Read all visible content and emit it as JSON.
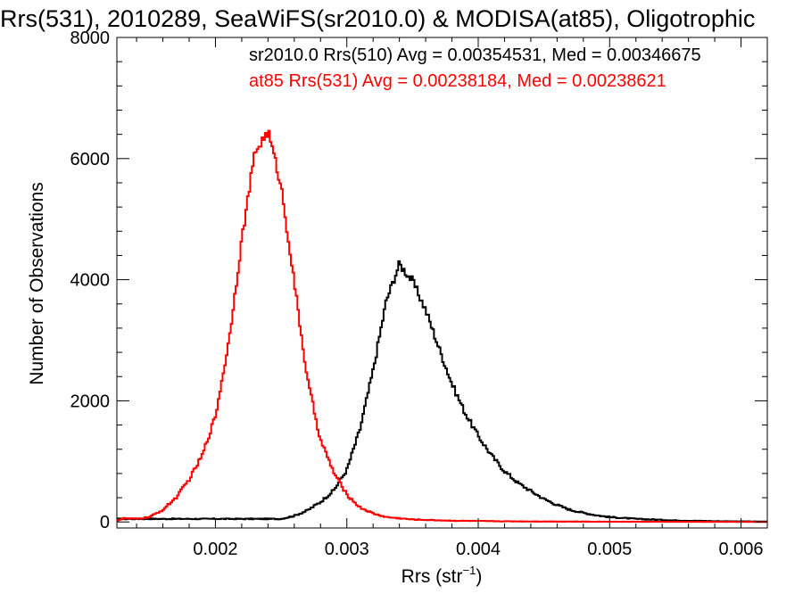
{
  "chart_data": {
    "type": "line",
    "title": "Rrs(531), 2010289, SeaWiFS(sr2010.0) & MODISA(at85), Oligotrophic",
    "xlabel": "Rrs (str",
    "xlabel_sup": "−1",
    "xlabel_close": ")",
    "ylabel": "Number of Observations",
    "xlim": [
      0.00125,
      0.0062
    ],
    "ylim": [
      -100,
      8000
    ],
    "x_ticks": [
      {
        "value": 0.002,
        "label": "0.002"
      },
      {
        "value": 0.003,
        "label": "0.003"
      },
      {
        "value": 0.004,
        "label": "0.004"
      },
      {
        "value": 0.005,
        "label": "0.005"
      },
      {
        "value": 0.006,
        "label": "0.006"
      }
    ],
    "y_ticks": [
      {
        "value": 0,
        "label": "0"
      },
      {
        "value": 2000,
        "label": "2000"
      },
      {
        "value": 4000,
        "label": "4000"
      },
      {
        "value": 6000,
        "label": "6000"
      },
      {
        "value": 8000,
        "label": "8000"
      }
    ],
    "grid": false,
    "legend_position": "top-right",
    "series": [
      {
        "name": "sr2010.0 Rrs(510) Avg = 0.00354531, Med = 0.00346675",
        "color": "#000000",
        "x": [
          0.0025,
          0.0026,
          0.0027,
          0.0028,
          0.0029,
          0.003,
          0.0031,
          0.0032,
          0.0033,
          0.0034,
          0.0035,
          0.0036,
          0.0037,
          0.0038,
          0.0039,
          0.004,
          0.0041,
          0.0042,
          0.0043,
          0.0044,
          0.0045,
          0.0046,
          0.0047,
          0.0048,
          0.0049,
          0.005,
          0.0052,
          0.0055,
          0.0058,
          0.0062
        ],
        "y": [
          50,
          100,
          190,
          330,
          520,
          860,
          1530,
          2500,
          3650,
          4260,
          3980,
          3500,
          2880,
          2280,
          1800,
          1420,
          1100,
          840,
          650,
          510,
          380,
          280,
          200,
          150,
          110,
          80,
          50,
          25,
          12,
          5
        ]
      },
      {
        "name": "at85 Rrs(531) Avg = 0.00238184, Med = 0.00238621",
        "color": "#ff0000",
        "x": [
          0.00125,
          0.0013,
          0.0014,
          0.0015,
          0.0016,
          0.0017,
          0.0018,
          0.0019,
          0.002,
          0.0021,
          0.0022,
          0.0023,
          0.0024,
          0.0025,
          0.0026,
          0.0027,
          0.0028,
          0.0029,
          0.003,
          0.0031,
          0.0032,
          0.0033,
          0.0035,
          0.0038,
          0.0042,
          0.0048,
          0.0055,
          0.0062
        ],
        "y": [
          20,
          60,
          50,
          80,
          200,
          400,
          700,
          1100,
          1750,
          2950,
          4650,
          6100,
          6450,
          5550,
          3950,
          2350,
          1350,
          820,
          450,
          240,
          140,
          80,
          40,
          20,
          10,
          5,
          2,
          0
        ]
      }
    ]
  }
}
